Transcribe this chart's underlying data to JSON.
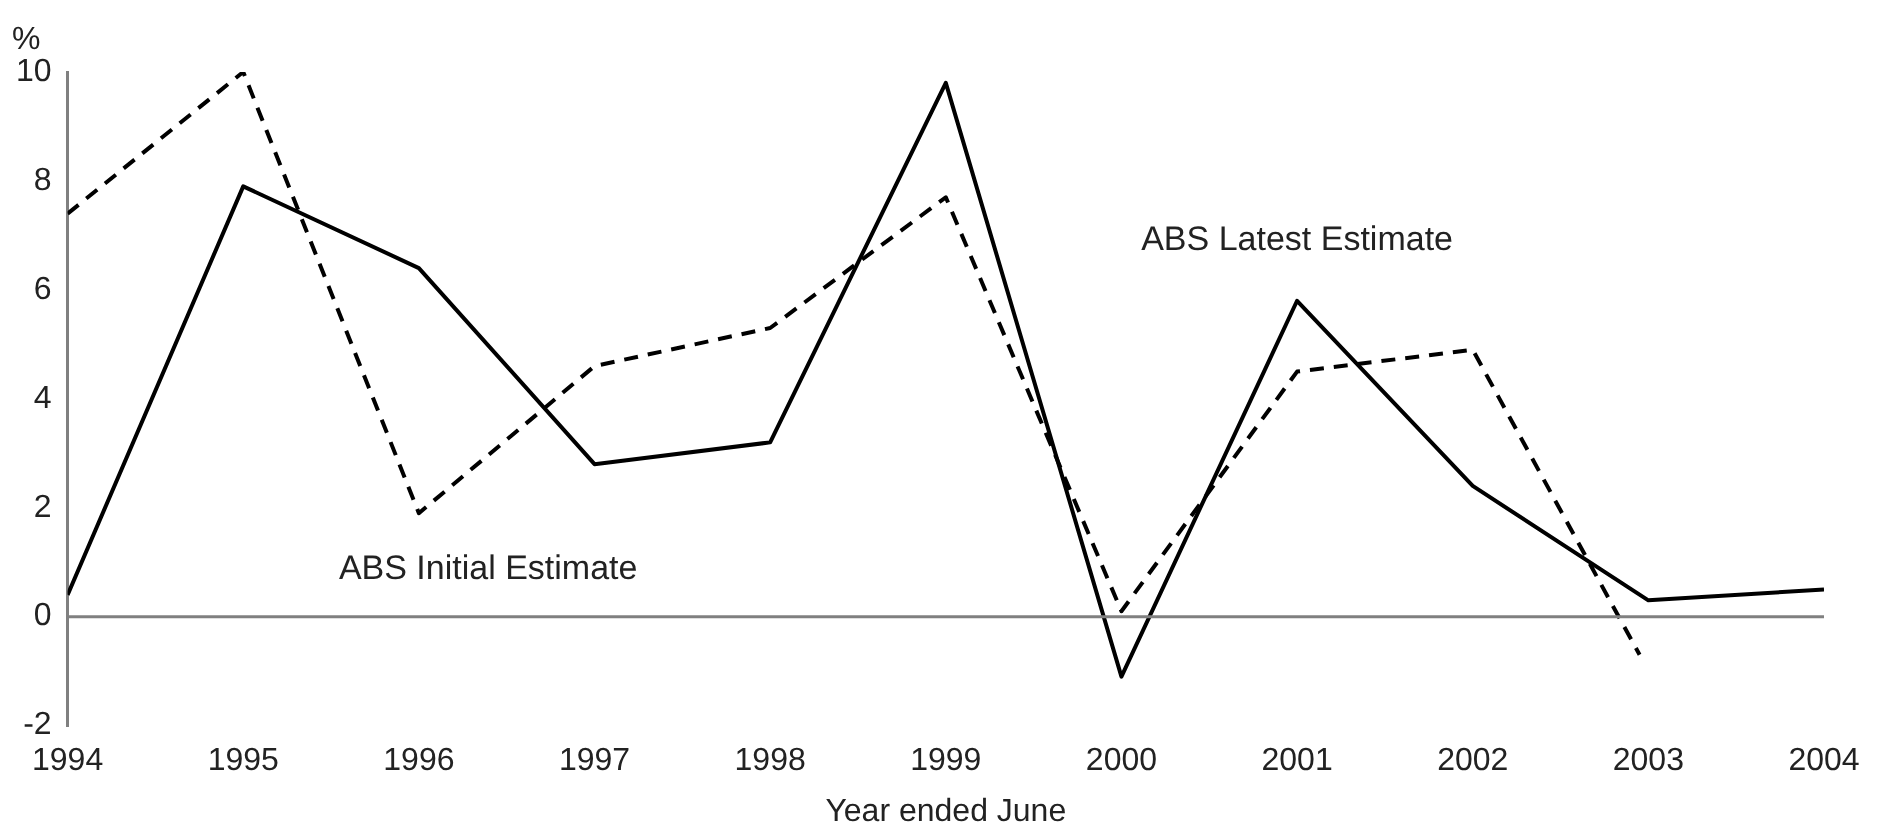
{
  "chart_data": {
    "type": "line",
    "xlabel": "Year ended June",
    "ylabel": "%",
    "xlim": [
      1994,
      2004
    ],
    "xticks": [
      1994,
      1995,
      1996,
      1997,
      1998,
      1999,
      2000,
      2001,
      2002,
      2003,
      2004
    ],
    "ylim": [
      -2,
      10
    ],
    "yticks": [
      -2,
      0,
      2,
      4,
      6,
      8,
      10
    ],
    "grid": false,
    "legend": false,
    "marker": "none",
    "ref_lines": [
      {
        "axis": "y",
        "value": 0,
        "color": "#808080"
      }
    ],
    "series": [
      {
        "name": "ABS Latest Estimate",
        "color": "#000000",
        "line_style": "solid",
        "x": [
          1994,
          1995,
          1996,
          1997,
          1998,
          1999,
          2000,
          2001,
          2002,
          2003,
          2004
        ],
        "values": [
          0.4,
          7.9,
          6.4,
          2.8,
          3.2,
          9.8,
          -1.1,
          5.8,
          2.4,
          0.3,
          0.5
        ]
      },
      {
        "name": "ABS Initial Estimate",
        "color": "#000000",
        "line_style": "dashed",
        "x": [
          1994,
          1995,
          1996,
          1997,
          1998,
          1999,
          2000,
          2001,
          2002,
          2002.95
        ],
        "values": [
          7.4,
          10,
          1.9,
          4.6,
          5.3,
          7.7,
          0.1,
          4.5,
          4.9,
          -0.7
        ]
      }
    ]
  }
}
